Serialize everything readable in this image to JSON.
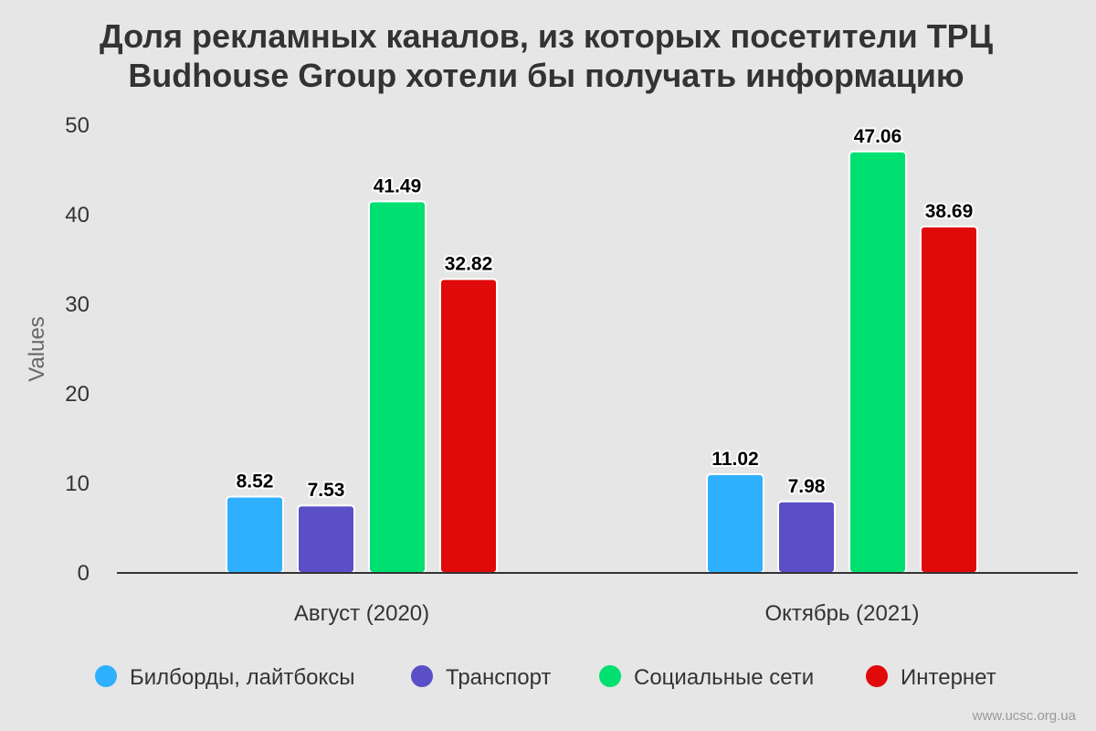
{
  "chart_data": {
    "type": "bar",
    "title_lines": [
      "Доля рекламных каналов, из которых посетители ТРЦ",
      "Budhouse Group хотели бы получать информацию"
    ],
    "ylabel": "Values",
    "xlabel": "",
    "ylim": [
      0,
      50
    ],
    "yticks": [
      0,
      10,
      20,
      30,
      40,
      50
    ],
    "categories": [
      "Август (2020)",
      "Октябрь (2021)"
    ],
    "series": [
      {
        "name": "Билборды, лайтбоксы",
        "color": "#2eb0ff",
        "values": [
          8.52,
          11.02
        ]
      },
      {
        "name": "Транспорт",
        "color": "#5a4fc6",
        "values": [
          7.53,
          7.98
        ]
      },
      {
        "name": "Социальные сети",
        "color": "#00e070",
        "values": [
          41.49,
          47.06
        ]
      },
      {
        "name": "Интернет",
        "color": "#e00a0a",
        "values": [
          32.82,
          38.69
        ]
      }
    ],
    "grid": false,
    "legend_position": "bottom",
    "data_labels": true
  },
  "watermark": "www.ucsc.org.ua"
}
